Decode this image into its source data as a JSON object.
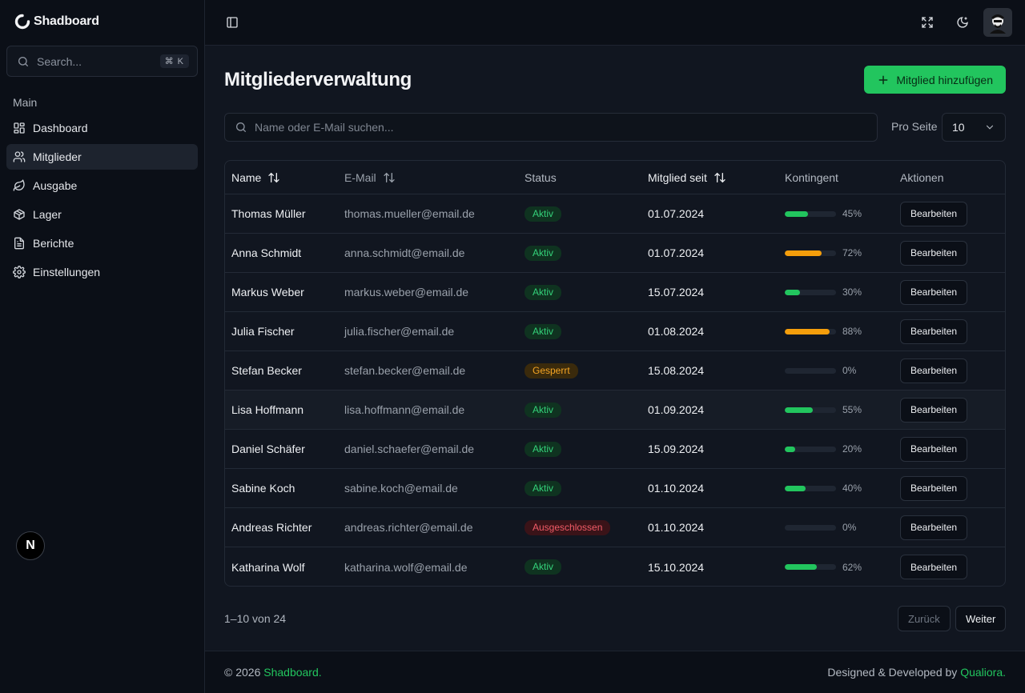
{
  "brand": {
    "name": "Shadboard"
  },
  "sidebar": {
    "search_placeholder": "Search...",
    "search_shortcut": "⌘ K",
    "heading": "Main",
    "items": [
      {
        "label": "Dashboard",
        "icon": "dashboard-icon",
        "active": false
      },
      {
        "label": "Mitglieder",
        "icon": "users-icon",
        "active": true
      },
      {
        "label": "Ausgabe",
        "icon": "leaf-icon",
        "active": false
      },
      {
        "label": "Lager",
        "icon": "package-icon",
        "active": false
      },
      {
        "label": "Berichte",
        "icon": "file-icon",
        "active": false
      },
      {
        "label": "Einstellungen",
        "icon": "gear-icon",
        "active": false
      }
    ],
    "badge_letter": "N"
  },
  "topbar": {
    "icons": [
      "sidebar-toggle-icon",
      "fullscreen-icon",
      "moon-icon",
      "avatar"
    ]
  },
  "page": {
    "title": "Mitgliederverwaltung",
    "add_button": "Mitglied hinzufügen",
    "search_placeholder": "Name oder E-Mail suchen...",
    "per_page_label": "Pro Seite",
    "per_page_value": "10"
  },
  "table": {
    "headers": {
      "name": "Name",
      "email": "E-Mail",
      "status": "Status",
      "since": "Mitglied seit",
      "quota": "Kontingent",
      "actions": "Aktionen"
    },
    "action_label": "Bearbeiten",
    "rows": [
      {
        "name": "Thomas Müller",
        "email": "thomas.mueller@email.de",
        "status": "Aktiv",
        "status_type": "aktiv",
        "since": "01.07.2024",
        "quota": 45,
        "quota_label": "45%"
      },
      {
        "name": "Anna Schmidt",
        "email": "anna.schmidt@email.de",
        "status": "Aktiv",
        "status_type": "aktiv",
        "since": "01.07.2024",
        "quota": 72,
        "quota_label": "72%"
      },
      {
        "name": "Markus Weber",
        "email": "markus.weber@email.de",
        "status": "Aktiv",
        "status_type": "aktiv",
        "since": "15.07.2024",
        "quota": 30,
        "quota_label": "30%"
      },
      {
        "name": "Julia Fischer",
        "email": "julia.fischer@email.de",
        "status": "Aktiv",
        "status_type": "aktiv",
        "since": "01.08.2024",
        "quota": 88,
        "quota_label": "88%"
      },
      {
        "name": "Stefan Becker",
        "email": "stefan.becker@email.de",
        "status": "Gesperrt",
        "status_type": "gesperrt",
        "since": "15.08.2024",
        "quota": 0,
        "quota_label": "0%"
      },
      {
        "name": "Lisa Hoffmann",
        "email": "lisa.hoffmann@email.de",
        "status": "Aktiv",
        "status_type": "aktiv",
        "since": "01.09.2024",
        "quota": 55,
        "quota_label": "55%"
      },
      {
        "name": "Daniel Schäfer",
        "email": "daniel.schaefer@email.de",
        "status": "Aktiv",
        "status_type": "aktiv",
        "since": "15.09.2024",
        "quota": 20,
        "quota_label": "20%"
      },
      {
        "name": "Sabine Koch",
        "email": "sabine.koch@email.de",
        "status": "Aktiv",
        "status_type": "aktiv",
        "since": "01.10.2024",
        "quota": 40,
        "quota_label": "40%"
      },
      {
        "name": "Andreas Richter",
        "email": "andreas.richter@email.de",
        "status": "Ausgeschlossen",
        "status_type": "aus",
        "since": "01.10.2024",
        "quota": 0,
        "quota_label": "0%"
      },
      {
        "name": "Katharina Wolf",
        "email": "katharina.wolf@email.de",
        "status": "Aktiv",
        "status_type": "aktiv",
        "since": "15.10.2024",
        "quota": 62,
        "quota_label": "62%"
      }
    ]
  },
  "pagination": {
    "range": "1–10 von 24",
    "prev": "Zurück",
    "next": "Weiter"
  },
  "footer": {
    "copyright": "© 2026",
    "brand_link": "Shadboard.",
    "credit": "Designed & Developed by",
    "credit_link": "Qualiora."
  },
  "colors": {
    "accent": "#22c55e",
    "warning": "#f59e0b",
    "danger": "#f15b67",
    "quota_green": "#22c55e",
    "quota_orange": "#f59e0b"
  }
}
